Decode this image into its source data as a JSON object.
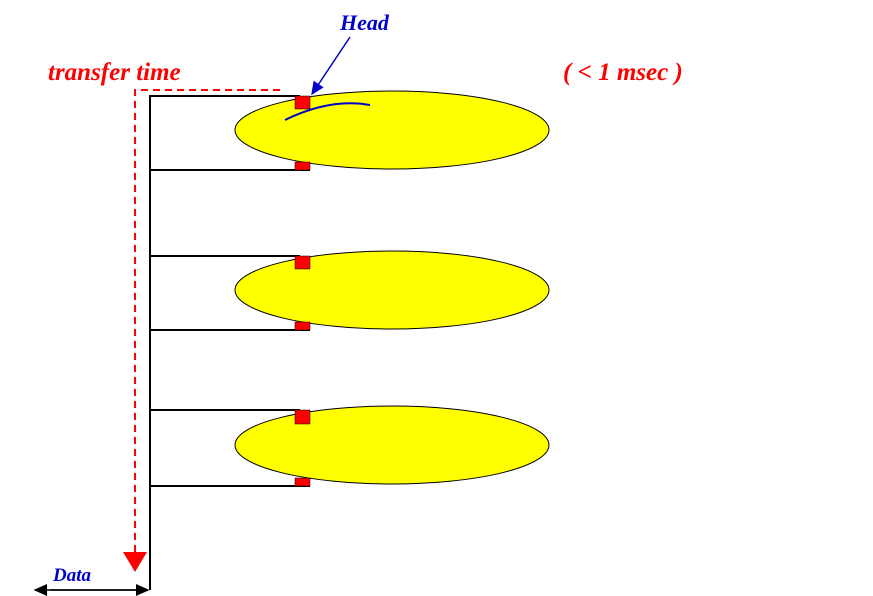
{
  "labels": {
    "head": "Head",
    "transfer_time": "transfer time",
    "duration": "( < 1 msec )",
    "data": "Data"
  }
}
